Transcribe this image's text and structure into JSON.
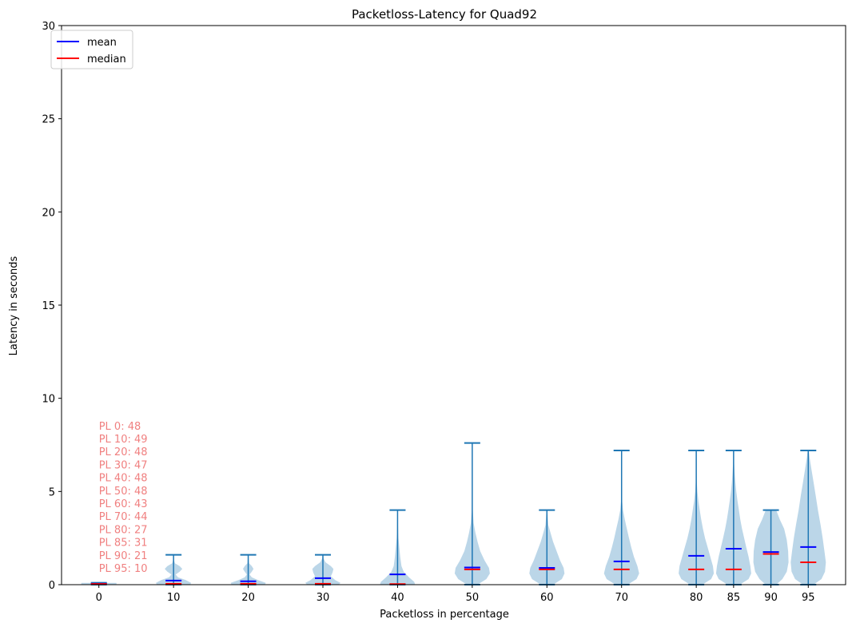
{
  "chart_data": {
    "type": "violin",
    "title": "Packetloss-Latency for Quad92",
    "xlabel": "Packetloss in percentage",
    "ylabel": "Latency in seconds",
    "ylim": [
      0,
      30
    ],
    "xlim": [
      -5,
      100
    ],
    "yticks": [
      0,
      5,
      10,
      15,
      20,
      25,
      30
    ],
    "grid": false,
    "legend": {
      "placement": "top-left",
      "entries": [
        {
          "label": "mean",
          "color": "#0000ff"
        },
        {
          "label": "median",
          "color": "#ff0000"
        }
      ]
    },
    "colors": {
      "body": "#1f77b4",
      "body_alpha": 0.3,
      "lines": "#1f77b4",
      "mean": "#0000ff",
      "median": "#ff0000",
      "annotation": "#f08080"
    },
    "series": [
      {
        "x": 0,
        "label": "0",
        "min": 0.0,
        "max": 0.1,
        "mean": 0.05,
        "median": 0.04,
        "density": [
          [
            0.0,
            1.0
          ],
          [
            0.1,
            1.0
          ]
        ]
      },
      {
        "x": 10,
        "label": "10",
        "min": 0.0,
        "max": 1.6,
        "mean": 0.22,
        "median": 0.05,
        "density": [
          [
            0.0,
            0.95
          ],
          [
            0.1,
            1.0
          ],
          [
            0.25,
            0.7
          ],
          [
            0.4,
            0.25
          ],
          [
            0.55,
            0.12
          ],
          [
            0.7,
            0.35
          ],
          [
            0.85,
            0.5
          ],
          [
            1.0,
            0.35
          ],
          [
            1.15,
            0.08
          ],
          [
            1.3,
            0.03
          ],
          [
            1.6,
            0.01
          ]
        ]
      },
      {
        "x": 20,
        "label": "20",
        "min": 0.0,
        "max": 1.6,
        "mean": 0.18,
        "median": 0.05,
        "density": [
          [
            0.0,
            0.95
          ],
          [
            0.1,
            1.0
          ],
          [
            0.25,
            0.55
          ],
          [
            0.4,
            0.2
          ],
          [
            0.55,
            0.08
          ],
          [
            0.7,
            0.2
          ],
          [
            0.85,
            0.3
          ],
          [
            1.0,
            0.2
          ],
          [
            1.15,
            0.05
          ],
          [
            1.6,
            0.01
          ]
        ]
      },
      {
        "x": 30,
        "label": "30",
        "min": 0.0,
        "max": 1.6,
        "mean": 0.35,
        "median": 0.05,
        "density": [
          [
            0.0,
            0.9
          ],
          [
            0.1,
            1.0
          ],
          [
            0.25,
            0.7
          ],
          [
            0.45,
            0.45
          ],
          [
            0.65,
            0.55
          ],
          [
            0.85,
            0.6
          ],
          [
            1.0,
            0.45
          ],
          [
            1.2,
            0.15
          ],
          [
            1.4,
            0.04
          ],
          [
            1.6,
            0.01
          ]
        ]
      },
      {
        "x": 40,
        "label": "40",
        "min": 0.0,
        "max": 4.0,
        "mean": 0.55,
        "median": 0.03,
        "density": [
          [
            0.0,
            1.0
          ],
          [
            0.15,
            0.95
          ],
          [
            0.4,
            0.65
          ],
          [
            0.7,
            0.35
          ],
          [
            1.0,
            0.22
          ],
          [
            1.5,
            0.15
          ],
          [
            2.0,
            0.1
          ],
          [
            2.5,
            0.05
          ],
          [
            3.0,
            0.03
          ],
          [
            4.0,
            0.01
          ]
        ]
      },
      {
        "x": 50,
        "label": "50",
        "min": 0.0,
        "max": 7.6,
        "mean": 0.92,
        "median": 0.82,
        "density": [
          [
            0.0,
            0.3
          ],
          [
            0.3,
            0.8
          ],
          [
            0.6,
            1.0
          ],
          [
            0.9,
            0.95
          ],
          [
            1.3,
            0.7
          ],
          [
            1.8,
            0.45
          ],
          [
            2.3,
            0.3
          ],
          [
            2.8,
            0.18
          ],
          [
            3.3,
            0.08
          ],
          [
            4.0,
            0.03
          ],
          [
            5.5,
            0.01
          ],
          [
            7.6,
            0.005
          ]
        ]
      },
      {
        "x": 60,
        "label": "60",
        "min": 0.0,
        "max": 4.0,
        "mean": 0.9,
        "median": 0.82,
        "density": [
          [
            0.0,
            0.35
          ],
          [
            0.3,
            0.85
          ],
          [
            0.6,
            1.0
          ],
          [
            0.9,
            0.95
          ],
          [
            1.3,
            0.75
          ],
          [
            1.8,
            0.55
          ],
          [
            2.3,
            0.35
          ],
          [
            2.8,
            0.2
          ],
          [
            3.2,
            0.08
          ],
          [
            4.0,
            0.02
          ]
        ]
      },
      {
        "x": 70,
        "label": "70",
        "min": 0.0,
        "max": 7.2,
        "mean": 1.25,
        "median": 0.82,
        "density": [
          [
            0.0,
            0.35
          ],
          [
            0.3,
            0.85
          ],
          [
            0.6,
            1.0
          ],
          [
            1.0,
            0.9
          ],
          [
            1.5,
            0.7
          ],
          [
            2.0,
            0.55
          ],
          [
            2.5,
            0.42
          ],
          [
            3.0,
            0.3
          ],
          [
            3.5,
            0.18
          ],
          [
            4.0,
            0.08
          ],
          [
            4.5,
            0.03
          ],
          [
            5.5,
            0.01
          ],
          [
            7.2,
            0.005
          ]
        ]
      },
      {
        "x": 80,
        "label": "80",
        "min": 0.0,
        "max": 7.2,
        "mean": 1.55,
        "median": 0.82,
        "density": [
          [
            0.0,
            0.35
          ],
          [
            0.3,
            0.85
          ],
          [
            0.6,
            1.0
          ],
          [
            1.0,
            0.95
          ],
          [
            1.5,
            0.8
          ],
          [
            2.0,
            0.65
          ],
          [
            2.5,
            0.5
          ],
          [
            3.0,
            0.38
          ],
          [
            3.5,
            0.28
          ],
          [
            4.0,
            0.2
          ],
          [
            4.5,
            0.12
          ],
          [
            5.0,
            0.06
          ],
          [
            5.5,
            0.03
          ],
          [
            6.0,
            0.01
          ],
          [
            7.2,
            0.005
          ]
        ]
      },
      {
        "x": 85,
        "label": "85",
        "min": 0.0,
        "max": 7.2,
        "mean": 1.93,
        "median": 0.82,
        "density": [
          [
            0.0,
            0.35
          ],
          [
            0.3,
            0.85
          ],
          [
            0.6,
            1.0
          ],
          [
            1.0,
            0.95
          ],
          [
            1.5,
            0.85
          ],
          [
            2.0,
            0.72
          ],
          [
            2.5,
            0.6
          ],
          [
            3.0,
            0.48
          ],
          [
            3.5,
            0.38
          ],
          [
            4.0,
            0.3
          ],
          [
            4.5,
            0.22
          ],
          [
            5.0,
            0.15
          ],
          [
            5.5,
            0.1
          ],
          [
            6.0,
            0.06
          ],
          [
            6.5,
            0.03
          ],
          [
            7.2,
            0.01
          ]
        ]
      },
      {
        "x": 90,
        "label": "90",
        "min": 0.0,
        "max": 4.0,
        "mean": 1.75,
        "median": 1.65,
        "density": [
          [
            0.0,
            0.3
          ],
          [
            0.3,
            0.65
          ],
          [
            0.7,
            0.9
          ],
          [
            1.2,
            1.0
          ],
          [
            1.8,
            0.98
          ],
          [
            2.4,
            0.9
          ],
          [
            3.0,
            0.75
          ],
          [
            3.5,
            0.5
          ],
          [
            4.0,
            0.3
          ]
        ]
      },
      {
        "x": 95,
        "label": "95",
        "min": 0.0,
        "max": 7.2,
        "mean": 2.02,
        "median": 1.2,
        "density": [
          [
            0.0,
            0.3
          ],
          [
            0.3,
            0.75
          ],
          [
            0.7,
            0.95
          ],
          [
            1.2,
            1.0
          ],
          [
            1.8,
            0.92
          ],
          [
            2.5,
            0.82
          ],
          [
            3.2,
            0.7
          ],
          [
            4.0,
            0.55
          ],
          [
            4.8,
            0.42
          ],
          [
            5.5,
            0.3
          ],
          [
            6.2,
            0.18
          ],
          [
            6.8,
            0.08
          ],
          [
            7.2,
            0.03
          ]
        ]
      }
    ],
    "annotations": [
      "PL 0: 48",
      "PL 10: 49",
      "PL 20: 48",
      "PL 30: 47",
      "PL 40: 48",
      "PL 50: 48",
      "PL 60: 43",
      "PL 70: 44",
      "PL 80: 27",
      "PL 85: 31",
      "PL 90: 21",
      "PL 95: 10"
    ]
  }
}
